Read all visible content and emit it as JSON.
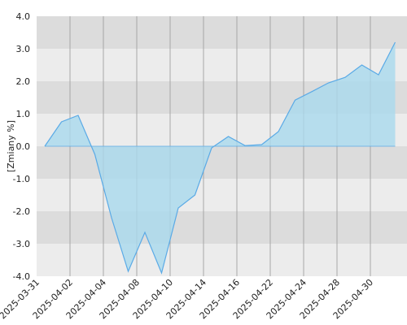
{
  "chart_data": {
    "type": "area",
    "y_label": "[Zmiany %]",
    "categories": [
      "2025-03-31",
      null,
      "2025-04-02",
      null,
      "2025-04-04",
      null,
      "2025-04-08",
      null,
      "2025-04-10",
      null,
      "2025-04-14",
      null,
      "2025-04-16",
      null,
      "2025-04-22",
      null,
      "2025-04-24",
      null,
      "2025-04-28",
      null,
      "2025-04-30",
      null
    ],
    "values": [
      0,
      0.75,
      0.95,
      -0.25,
      -2.2,
      -3.85,
      -2.65,
      -3.9,
      -1.9,
      -1.5,
      -0.05,
      0.3,
      0.02,
      0.05,
      0.45,
      1.42,
      1.68,
      1.95,
      2.12,
      2.5,
      2.2,
      3.2
    ],
    "color": "#5aaae6",
    "fill": "#a9d9ee",
    "ylim": [
      -4,
      4
    ],
    "yticks": [
      {
        "value": -4,
        "label": "-4.0"
      },
      {
        "value": -3,
        "label": "-3.0"
      },
      {
        "value": -2,
        "label": "-2.0"
      },
      {
        "value": -1,
        "label": "-1.0"
      },
      {
        "value": 0,
        "label": "0.0"
      },
      {
        "value": 1,
        "label": "1.0"
      },
      {
        "value": 2,
        "label": "2.0"
      },
      {
        "value": 3,
        "label": "3.0"
      },
      {
        "value": 4,
        "label": "4.0"
      }
    ],
    "grid": true
  }
}
